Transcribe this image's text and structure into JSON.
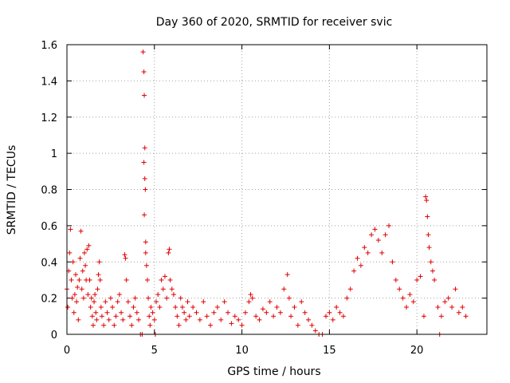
{
  "chart_data": {
    "type": "scatter",
    "title": "Day 360 of 2020, SRMTID for receiver svic",
    "xlabel": "GPS time / hours",
    "ylabel": "SRMTID / TECUs",
    "xlim": [
      0,
      24
    ],
    "ylim": [
      0,
      1.6
    ],
    "xticks": [
      0,
      5,
      10,
      15,
      20
    ],
    "xtick_labels": [
      "0",
      "5",
      "10",
      "15",
      "20"
    ],
    "yticks": [
      0,
      0.2,
      0.4,
      0.6,
      0.8,
      1.0,
      1.2,
      1.4,
      1.6
    ],
    "ytick_labels": [
      "0",
      "0.2",
      "0.4",
      "0.6",
      "0.8",
      "1",
      "1.2",
      "1.4",
      "1.6"
    ],
    "grid": true,
    "marker": "+",
    "color": "#e00000",
    "series": [
      {
        "name": "SRMTID",
        "points": [
          [
            0.0,
            0.25
          ],
          [
            0.05,
            0.15
          ],
          [
            0.1,
            0.35
          ],
          [
            0.15,
            0.45
          ],
          [
            0.2,
            0.58
          ],
          [
            0.25,
            0.3
          ],
          [
            0.3,
            0.2
          ],
          [
            0.35,
            0.4
          ],
          [
            0.4,
            0.12
          ],
          [
            0.45,
            0.22
          ],
          [
            0.5,
            0.33
          ],
          [
            0.55,
            0.18
          ],
          [
            0.6,
            0.26
          ],
          [
            0.65,
            0.08
          ],
          [
            0.7,
            0.3
          ],
          [
            0.75,
            0.42
          ],
          [
            0.8,
            0.57
          ],
          [
            0.85,
            0.25
          ],
          [
            0.9,
            0.35
          ],
          [
            0.95,
            0.2
          ],
          [
            1.0,
            0.45
          ],
          [
            1.05,
            0.38
          ],
          [
            1.1,
            0.3
          ],
          [
            1.15,
            0.47
          ],
          [
            1.2,
            0.22
          ],
          [
            1.25,
            0.49
          ],
          [
            1.3,
            0.3
          ],
          [
            1.35,
            0.15
          ],
          [
            1.4,
            0.2
          ],
          [
            1.45,
            0.1
          ],
          [
            1.5,
            0.05
          ],
          [
            1.55,
            0.18
          ],
          [
            1.6,
            0.22
          ],
          [
            1.65,
            0.12
          ],
          [
            1.7,
            0.08
          ],
          [
            1.75,
            0.25
          ],
          [
            1.8,
            0.33
          ],
          [
            1.85,
            0.4
          ],
          [
            1.9,
            0.3
          ],
          [
            1.95,
            0.15
          ],
          [
            2.0,
            0.1
          ],
          [
            2.1,
            0.05
          ],
          [
            2.2,
            0.18
          ],
          [
            2.3,
            0.12
          ],
          [
            2.4,
            0.08
          ],
          [
            2.5,
            0.2
          ],
          [
            2.6,
            0.15
          ],
          [
            2.7,
            0.05
          ],
          [
            2.8,
            0.1
          ],
          [
            2.9,
            0.18
          ],
          [
            3.0,
            0.22
          ],
          [
            3.1,
            0.12
          ],
          [
            3.2,
            0.08
          ],
          [
            3.3,
            0.44
          ],
          [
            3.35,
            0.42
          ],
          [
            3.4,
            0.3
          ],
          [
            3.5,
            0.18
          ],
          [
            3.6,
            0.1
          ],
          [
            3.7,
            0.05
          ],
          [
            3.8,
            0.15
          ],
          [
            3.9,
            0.2
          ],
          [
            4.0,
            0.12
          ],
          [
            4.1,
            0.08
          ],
          [
            4.2,
            0.0
          ],
          [
            4.3,
            0.0
          ],
          [
            4.35,
            1.56
          ],
          [
            4.4,
            1.45
          ],
          [
            4.42,
            1.32
          ],
          [
            4.45,
            1.03
          ],
          [
            4.4,
            0.95
          ],
          [
            4.45,
            0.86
          ],
          [
            4.48,
            0.8
          ],
          [
            4.42,
            0.66
          ],
          [
            4.5,
            0.51
          ],
          [
            4.5,
            0.45
          ],
          [
            4.55,
            0.38
          ],
          [
            4.6,
            0.3
          ],
          [
            4.65,
            0.2
          ],
          [
            4.7,
            0.1
          ],
          [
            4.75,
            0.05
          ],
          [
            4.8,
            0.15
          ],
          [
            4.9,
            0.12
          ],
          [
            5.0,
            0.08
          ],
          [
            5.05,
            0.0
          ],
          [
            5.1,
            0.18
          ],
          [
            5.2,
            0.22
          ],
          [
            5.3,
            0.15
          ],
          [
            5.4,
            0.3
          ],
          [
            5.5,
            0.25
          ],
          [
            5.6,
            0.32
          ],
          [
            5.7,
            0.2
          ],
          [
            5.8,
            0.45
          ],
          [
            5.85,
            0.47
          ],
          [
            5.9,
            0.3
          ],
          [
            6.0,
            0.25
          ],
          [
            6.1,
            0.22
          ],
          [
            6.2,
            0.15
          ],
          [
            6.3,
            0.1
          ],
          [
            6.4,
            0.05
          ],
          [
            6.5,
            0.2
          ],
          [
            6.6,
            0.15
          ],
          [
            6.7,
            0.12
          ],
          [
            6.8,
            0.08
          ],
          [
            6.9,
            0.18
          ],
          [
            7.0,
            0.1
          ],
          [
            7.2,
            0.15
          ],
          [
            7.4,
            0.12
          ],
          [
            7.6,
            0.08
          ],
          [
            7.8,
            0.18
          ],
          [
            8.0,
            0.1
          ],
          [
            8.2,
            0.05
          ],
          [
            8.4,
            0.12
          ],
          [
            8.6,
            0.15
          ],
          [
            8.8,
            0.08
          ],
          [
            9.0,
            0.18
          ],
          [
            9.2,
            0.12
          ],
          [
            9.4,
            0.06
          ],
          [
            9.6,
            0.1
          ],
          [
            9.8,
            0.08
          ],
          [
            10.0,
            0.05
          ],
          [
            10.2,
            0.12
          ],
          [
            10.4,
            0.18
          ],
          [
            10.5,
            0.22
          ],
          [
            10.6,
            0.2
          ],
          [
            10.8,
            0.1
          ],
          [
            11.0,
            0.08
          ],
          [
            11.2,
            0.14
          ],
          [
            11.4,
            0.12
          ],
          [
            11.6,
            0.18
          ],
          [
            11.8,
            0.1
          ],
          [
            12.0,
            0.15
          ],
          [
            12.2,
            0.12
          ],
          [
            12.4,
            0.25
          ],
          [
            12.6,
            0.33
          ],
          [
            12.7,
            0.2
          ],
          [
            12.8,
            0.1
          ],
          [
            13.0,
            0.15
          ],
          [
            13.2,
            0.05
          ],
          [
            13.4,
            0.18
          ],
          [
            13.6,
            0.12
          ],
          [
            13.8,
            0.08
          ],
          [
            14.0,
            0.05
          ],
          [
            14.2,
            0.02
          ],
          [
            14.4,
            0.0
          ],
          [
            14.6,
            0.0
          ],
          [
            14.8,
            0.1
          ],
          [
            15.0,
            0.12
          ],
          [
            15.2,
            0.08
          ],
          [
            15.4,
            0.15
          ],
          [
            15.6,
            0.12
          ],
          [
            15.8,
            0.1
          ],
          [
            16.0,
            0.2
          ],
          [
            16.2,
            0.25
          ],
          [
            16.4,
            0.35
          ],
          [
            16.6,
            0.42
          ],
          [
            16.8,
            0.38
          ],
          [
            17.0,
            0.48
          ],
          [
            17.2,
            0.45
          ],
          [
            17.4,
            0.55
          ],
          [
            17.6,
            0.58
          ],
          [
            17.8,
            0.52
          ],
          [
            18.0,
            0.45
          ],
          [
            18.2,
            0.55
          ],
          [
            18.4,
            0.6
          ],
          [
            18.6,
            0.4
          ],
          [
            18.8,
            0.3
          ],
          [
            19.0,
            0.25
          ],
          [
            19.2,
            0.2
          ],
          [
            19.4,
            0.15
          ],
          [
            19.6,
            0.22
          ],
          [
            19.8,
            0.18
          ],
          [
            20.0,
            0.3
          ],
          [
            20.2,
            0.32
          ],
          [
            20.4,
            0.1
          ],
          [
            20.5,
            0.76
          ],
          [
            20.55,
            0.74
          ],
          [
            20.6,
            0.65
          ],
          [
            20.65,
            0.55
          ],
          [
            20.7,
            0.48
          ],
          [
            20.8,
            0.4
          ],
          [
            20.9,
            0.35
          ],
          [
            21.0,
            0.3
          ],
          [
            21.2,
            0.15
          ],
          [
            21.3,
            0.0
          ],
          [
            21.4,
            0.1
          ],
          [
            21.6,
            0.18
          ],
          [
            21.8,
            0.2
          ],
          [
            22.0,
            0.15
          ],
          [
            22.2,
            0.25
          ],
          [
            22.4,
            0.12
          ],
          [
            22.6,
            0.15
          ],
          [
            22.8,
            0.1
          ]
        ]
      }
    ]
  }
}
